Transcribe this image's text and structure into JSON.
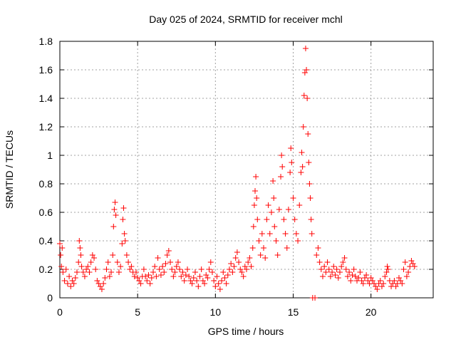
{
  "chart_data": {
    "type": "scatter",
    "title": "Day 025 of 2024, SRMTID for receiver mchl",
    "xlabel": "GPS time / hours",
    "ylabel": "SRMTID / TECUs",
    "xlim": [
      0,
      24
    ],
    "ylim": [
      0,
      1.8
    ],
    "grid": true,
    "marker": "+",
    "x_ticks": [
      0,
      5,
      10,
      15,
      20
    ],
    "x_tick_labels": [
      "0",
      "5",
      "10",
      "15",
      "20"
    ],
    "y_ticks": [
      0,
      0.2,
      0.4,
      0.6,
      0.8,
      1,
      1.2,
      1.4,
      1.6,
      1.8
    ],
    "y_tick_labels": [
      "0",
      "0.2",
      "0.4",
      "0.6",
      "0.8",
      "1",
      "1.2",
      "1.4",
      "1.6",
      "1.8"
    ],
    "series": [
      {
        "name": "SRMTID",
        "color": "#ff0000",
        "points": [
          [
            0.0,
            0.38
          ],
          [
            0.05,
            0.3
          ],
          [
            0.1,
            0.22
          ],
          [
            0.15,
            0.35
          ],
          [
            0.2,
            0.18
          ],
          [
            0.3,
            0.12
          ],
          [
            0.4,
            0.2
          ],
          [
            0.5,
            0.1
          ],
          [
            0.6,
            0.15
          ],
          [
            0.7,
            0.08
          ],
          [
            0.8,
            0.12
          ],
          [
            0.9,
            0.1
          ],
          [
            1.0,
            0.14
          ],
          [
            1.1,
            0.18
          ],
          [
            1.2,
            0.25
          ],
          [
            1.25,
            0.4
          ],
          [
            1.3,
            0.35
          ],
          [
            1.35,
            0.3
          ],
          [
            1.4,
            0.22
          ],
          [
            1.5,
            0.18
          ],
          [
            1.6,
            0.15
          ],
          [
            1.7,
            0.2
          ],
          [
            1.8,
            0.22
          ],
          [
            1.9,
            0.18
          ],
          [
            2.0,
            0.25
          ],
          [
            2.1,
            0.3
          ],
          [
            2.2,
            0.28
          ],
          [
            2.3,
            0.2
          ],
          [
            2.4,
            0.12
          ],
          [
            2.5,
            0.1
          ],
          [
            2.6,
            0.08
          ],
          [
            2.7,
            0.06
          ],
          [
            2.8,
            0.1
          ],
          [
            2.9,
            0.14
          ],
          [
            3.0,
            0.2
          ],
          [
            3.1,
            0.25
          ],
          [
            3.2,
            0.15
          ],
          [
            3.3,
            0.18
          ],
          [
            3.4,
            0.3
          ],
          [
            3.45,
            0.5
          ],
          [
            3.5,
            0.62
          ],
          [
            3.55,
            0.67
          ],
          [
            3.6,
            0.58
          ],
          [
            3.7,
            0.25
          ],
          [
            3.8,
            0.18
          ],
          [
            3.9,
            0.22
          ],
          [
            4.0,
            0.38
          ],
          [
            4.05,
            0.55
          ],
          [
            4.1,
            0.63
          ],
          [
            4.15,
            0.45
          ],
          [
            4.2,
            0.4
          ],
          [
            4.3,
            0.3
          ],
          [
            4.4,
            0.25
          ],
          [
            4.5,
            0.2
          ],
          [
            4.6,
            0.22
          ],
          [
            4.7,
            0.18
          ],
          [
            4.8,
            0.15
          ],
          [
            4.9,
            0.18
          ],
          [
            5.0,
            0.14
          ],
          [
            5.1,
            0.12
          ],
          [
            5.2,
            0.1
          ],
          [
            5.3,
            0.15
          ],
          [
            5.4,
            0.2
          ],
          [
            5.5,
            0.15
          ],
          [
            5.6,
            0.12
          ],
          [
            5.7,
            0.16
          ],
          [
            5.8,
            0.1
          ],
          [
            5.9,
            0.14
          ],
          [
            6.0,
            0.18
          ],
          [
            6.1,
            0.22
          ],
          [
            6.2,
            0.15
          ],
          [
            6.3,
            0.28
          ],
          [
            6.4,
            0.2
          ],
          [
            6.5,
            0.16
          ],
          [
            6.6,
            0.22
          ],
          [
            6.7,
            0.18
          ],
          [
            6.8,
            0.24
          ],
          [
            6.9,
            0.3
          ],
          [
            7.0,
            0.33
          ],
          [
            7.1,
            0.25
          ],
          [
            7.2,
            0.2
          ],
          [
            7.3,
            0.15
          ],
          [
            7.4,
            0.18
          ],
          [
            7.5,
            0.22
          ],
          [
            7.6,
            0.25
          ],
          [
            7.7,
            0.2
          ],
          [
            7.8,
            0.15
          ],
          [
            7.9,
            0.18
          ],
          [
            8.0,
            0.12
          ],
          [
            8.1,
            0.16
          ],
          [
            8.2,
            0.2
          ],
          [
            8.3,
            0.15
          ],
          [
            8.4,
            0.12
          ],
          [
            8.5,
            0.1
          ],
          [
            8.6,
            0.14
          ],
          [
            8.7,
            0.18
          ],
          [
            8.8,
            0.12
          ],
          [
            8.9,
            0.08
          ],
          [
            9.0,
            0.15
          ],
          [
            9.1,
            0.2
          ],
          [
            9.2,
            0.12
          ],
          [
            9.3,
            0.1
          ],
          [
            9.4,
            0.16
          ],
          [
            9.5,
            0.14
          ],
          [
            9.6,
            0.2
          ],
          [
            9.7,
            0.25
          ],
          [
            9.8,
            0.18
          ],
          [
            9.9,
            0.12
          ],
          [
            10.0,
            0.08
          ],
          [
            10.1,
            0.15
          ],
          [
            10.2,
            0.1
          ],
          [
            10.3,
            0.06
          ],
          [
            10.4,
            0.12
          ],
          [
            10.5,
            0.18
          ],
          [
            10.6,
            0.14
          ],
          [
            10.7,
            0.1
          ],
          [
            10.8,
            0.16
          ],
          [
            10.9,
            0.2
          ],
          [
            11.0,
            0.24
          ],
          [
            11.1,
            0.18
          ],
          [
            11.2,
            0.22
          ],
          [
            11.3,
            0.28
          ],
          [
            11.4,
            0.32
          ],
          [
            11.5,
            0.25
          ],
          [
            11.6,
            0.2
          ],
          [
            11.7,
            0.18
          ],
          [
            11.8,
            0.15
          ],
          [
            11.9,
            0.22
          ],
          [
            12.0,
            0.2
          ],
          [
            12.1,
            0.25
          ],
          [
            12.2,
            0.28
          ],
          [
            12.3,
            0.22
          ],
          [
            12.4,
            0.35
          ],
          [
            12.45,
            0.5
          ],
          [
            12.5,
            0.65
          ],
          [
            12.55,
            0.75
          ],
          [
            12.6,
            0.85
          ],
          [
            12.65,
            0.7
          ],
          [
            12.7,
            0.55
          ],
          [
            12.8,
            0.4
          ],
          [
            12.9,
            0.3
          ],
          [
            13.0,
            0.45
          ],
          [
            13.1,
            0.35
          ],
          [
            13.2,
            0.28
          ],
          [
            13.3,
            0.55
          ],
          [
            13.4,
            0.65
          ],
          [
            13.5,
            0.45
          ],
          [
            13.6,
            0.6
          ],
          [
            13.7,
            0.82
          ],
          [
            13.75,
            0.7
          ],
          [
            13.8,
            0.5
          ],
          [
            13.9,
            0.4
          ],
          [
            14.0,
            0.3
          ],
          [
            14.1,
            0.62
          ],
          [
            14.2,
            0.85
          ],
          [
            14.25,
            1.0
          ],
          [
            14.3,
            0.92
          ],
          [
            14.4,
            0.55
          ],
          [
            14.5,
            0.45
          ],
          [
            14.6,
            0.35
          ],
          [
            14.7,
            0.62
          ],
          [
            14.8,
            0.88
          ],
          [
            14.85,
            1.05
          ],
          [
            14.9,
            0.95
          ],
          [
            15.0,
            0.7
          ],
          [
            15.1,
            0.55
          ],
          [
            15.2,
            0.45
          ],
          [
            15.3,
            0.4
          ],
          [
            15.4,
            0.65
          ],
          [
            15.5,
            0.88
          ],
          [
            15.55,
            1.02
          ],
          [
            15.6,
            0.92
          ],
          [
            15.65,
            1.2
          ],
          [
            15.7,
            1.42
          ],
          [
            15.75,
            1.58
          ],
          [
            15.8,
            1.75
          ],
          [
            15.85,
            1.6
          ],
          [
            15.9,
            1.4
          ],
          [
            15.95,
            1.15
          ],
          [
            16.0,
            0.95
          ],
          [
            16.05,
            0.8
          ],
          [
            16.1,
            0.7
          ],
          [
            16.15,
            0.55
          ],
          [
            16.2,
            0.45
          ],
          [
            16.25,
            0.0
          ],
          [
            16.4,
            0.0
          ],
          [
            16.5,
            0.3
          ],
          [
            16.6,
            0.35
          ],
          [
            16.7,
            0.25
          ],
          [
            16.8,
            0.2
          ],
          [
            16.9,
            0.15
          ],
          [
            17.0,
            0.22
          ],
          [
            17.1,
            0.18
          ],
          [
            17.2,
            0.25
          ],
          [
            17.3,
            0.2
          ],
          [
            17.4,
            0.15
          ],
          [
            17.5,
            0.18
          ],
          [
            17.6,
            0.22
          ],
          [
            17.7,
            0.16
          ],
          [
            17.8,
            0.2
          ],
          [
            17.9,
            0.14
          ],
          [
            18.0,
            0.18
          ],
          [
            18.1,
            0.22
          ],
          [
            18.2,
            0.25
          ],
          [
            18.3,
            0.28
          ],
          [
            18.4,
            0.2
          ],
          [
            18.5,
            0.15
          ],
          [
            18.6,
            0.18
          ],
          [
            18.7,
            0.12
          ],
          [
            18.8,
            0.16
          ],
          [
            18.9,
            0.2
          ],
          [
            19.0,
            0.15
          ],
          [
            19.1,
            0.12
          ],
          [
            19.2,
            0.14
          ],
          [
            19.3,
            0.18
          ],
          [
            19.4,
            0.12
          ],
          [
            19.5,
            0.1
          ],
          [
            19.6,
            0.14
          ],
          [
            19.7,
            0.16
          ],
          [
            19.8,
            0.12
          ],
          [
            19.9,
            0.1
          ],
          [
            20.0,
            0.14
          ],
          [
            20.1,
            0.12
          ],
          [
            20.2,
            0.1
          ],
          [
            20.3,
            0.08
          ],
          [
            20.4,
            0.06
          ],
          [
            20.5,
            0.1
          ],
          [
            20.6,
            0.12
          ],
          [
            20.7,
            0.08
          ],
          [
            20.8,
            0.1
          ],
          [
            20.9,
            0.15
          ],
          [
            21.0,
            0.18
          ],
          [
            21.05,
            0.22
          ],
          [
            21.1,
            0.2
          ],
          [
            21.2,
            0.12
          ],
          [
            21.3,
            0.08
          ],
          [
            21.4,
            0.1
          ],
          [
            21.5,
            0.12
          ],
          [
            21.6,
            0.08
          ],
          [
            21.7,
            0.1
          ],
          [
            21.8,
            0.14
          ],
          [
            21.9,
            0.12
          ],
          [
            22.0,
            0.1
          ],
          [
            22.1,
            0.2
          ],
          [
            22.2,
            0.25
          ],
          [
            22.3,
            0.15
          ],
          [
            22.4,
            0.18
          ],
          [
            22.5,
            0.22
          ],
          [
            22.6,
            0.26
          ],
          [
            22.7,
            0.24
          ],
          [
            22.8,
            0.22
          ]
        ]
      }
    ]
  }
}
